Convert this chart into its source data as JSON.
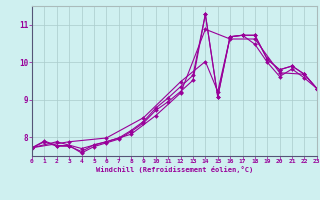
{
  "xlabel": "Windchill (Refroidissement éolien,°C)",
  "background_color": "#cff0f0",
  "line_color": "#990099",
  "grid_color": "#aacccc",
  "xmin": 0,
  "xmax": 23,
  "ymin": 7.5,
  "ymax": 11.5,
  "yticks": [
    8,
    9,
    10,
    11
  ],
  "xticks": [
    0,
    1,
    2,
    3,
    4,
    5,
    6,
    7,
    8,
    9,
    10,
    11,
    12,
    13,
    14,
    15,
    16,
    17,
    18,
    19,
    20,
    21,
    22,
    23
  ],
  "lines": [
    {
      "x": [
        0,
        1,
        2,
        3,
        4,
        5,
        6,
        7,
        8,
        9,
        10,
        11,
        12,
        13,
        14,
        15,
        16,
        17,
        18,
        19,
        20,
        21,
        22,
        23
      ],
      "y": [
        7.72,
        7.9,
        7.78,
        7.78,
        7.58,
        7.75,
        7.85,
        7.95,
        8.15,
        8.38,
        8.72,
        8.95,
        9.22,
        9.52,
        11.28,
        9.08,
        10.68,
        10.72,
        10.72,
        10.08,
        9.8,
        9.9,
        9.68,
        9.3
      ]
    },
    {
      "x": [
        0,
        1,
        2,
        3,
        4,
        5,
        6,
        7,
        8,
        9,
        10,
        11,
        12,
        13,
        14,
        15,
        16,
        17,
        18,
        19,
        20,
        21,
        22,
        23
      ],
      "y": [
        7.72,
        7.88,
        7.76,
        7.76,
        7.62,
        7.8,
        7.88,
        7.98,
        8.18,
        8.42,
        8.78,
        9.05,
        9.35,
        9.65,
        11.28,
        9.08,
        10.68,
        10.72,
        10.72,
        10.08,
        9.8,
        9.9,
        9.68,
        9.3
      ]
    },
    {
      "x": [
        0,
        2,
        4,
        6,
        8,
        10,
        12,
        14,
        16,
        18,
        20,
        22,
        23
      ],
      "y": [
        7.72,
        7.88,
        7.7,
        7.88,
        8.08,
        8.58,
        9.18,
        10.88,
        10.62,
        10.62,
        9.72,
        9.68,
        9.3
      ]
    },
    {
      "x": [
        0,
        3,
        6,
        9,
        12,
        14,
        15,
        16,
        17,
        18,
        19,
        20,
        21,
        22,
        23
      ],
      "y": [
        7.72,
        7.88,
        7.98,
        8.52,
        9.48,
        10.02,
        9.22,
        10.68,
        10.72,
        10.48,
        10.0,
        9.62,
        9.82,
        9.58,
        9.3
      ]
    }
  ]
}
